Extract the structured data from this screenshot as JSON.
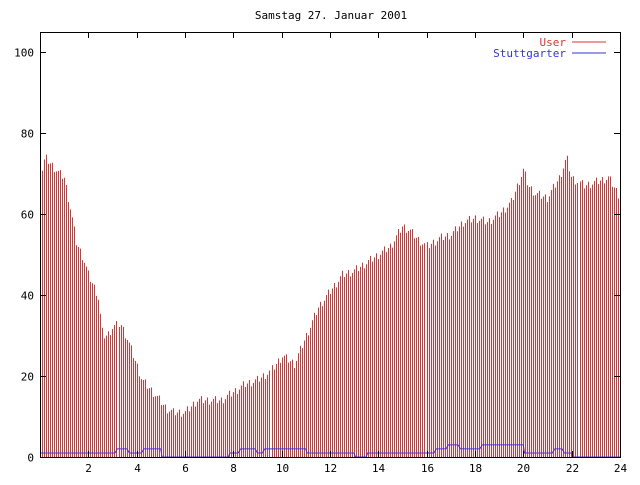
{
  "chart_data": {
    "type": "bar",
    "title": "Samstag 27. Januar 2001",
    "xlabel": "",
    "ylabel": "",
    "xlim": [
      0,
      24
    ],
    "ylim": [
      0,
      105
    ],
    "x_ticks": [
      "2",
      "4",
      "6",
      "8",
      "10",
      "12",
      "14",
      "16",
      "18",
      "20",
      "22",
      "24"
    ],
    "y_ticks": [
      "0",
      "20",
      "40",
      "60",
      "80",
      "100"
    ],
    "legend_position": "top-right",
    "bar_interval_hours": 0.0833,
    "series": [
      {
        "name": "User",
        "style": "impulses",
        "color": "#dd3333",
        "keypoints_x": [
          0,
          0.2,
          0.5,
          0.8,
          1.0,
          1.3,
          1.5,
          1.8,
          2.0,
          2.4,
          2.6,
          2.8,
          3.0,
          3.3,
          3.6,
          3.9,
          4.2,
          4.5,
          4.8,
          5.2,
          5.5,
          5.8,
          6.0,
          6.5,
          7.0,
          7.5,
          8.0,
          8.5,
          9.0,
          9.5,
          10.0,
          10.5,
          11.0,
          11.5,
          12.0,
          12.5,
          13.0,
          13.5,
          14.0,
          14.5,
          15.0,
          15.3,
          15.6,
          16.0,
          16.5,
          17.0,
          17.5,
          18.0,
          18.5,
          19.0,
          19.5,
          20.0,
          20.2,
          20.5,
          21.0,
          21.5,
          21.8,
          22.0,
          22.5,
          23.0,
          23.5,
          24.0
        ],
        "keypoints_y": [
          69,
          74,
          72,
          70,
          69,
          60,
          53,
          49,
          45,
          40,
          30,
          30,
          32,
          33,
          29,
          24,
          19,
          17,
          15,
          12,
          11,
          11,
          11,
          14,
          14,
          14,
          16,
          18,
          19,
          21,
          25,
          23,
          30,
          37,
          41,
          45,
          46,
          48,
          50,
          52,
          57,
          56,
          54,
          52,
          54,
          55,
          58,
          59,
          58,
          60,
          63,
          71,
          67,
          65,
          64,
          69,
          74,
          69,
          67,
          68,
          69,
          64
        ]
      },
      {
        "name": "Stuttgarter",
        "style": "lines",
        "color": "#3333dd",
        "keypoints_x": [
          0,
          3.1,
          3.2,
          3.6,
          3.7,
          4.2,
          4.3,
          5.0,
          5.05,
          7.8,
          7.85,
          8.2,
          8.3,
          8.9,
          9.0,
          9.2,
          9.3,
          11.0,
          11.05,
          13.0,
          13.05,
          13.5,
          13.55,
          16.3,
          16.4,
          16.8,
          16.9,
          17.3,
          17.4,
          17.8,
          17.9,
          18.2,
          18.3,
          20.0,
          20.05,
          21.2,
          21.3,
          21.6,
          21.7,
          22.0,
          22.05,
          24.0
        ],
        "keypoints_y": [
          1,
          1,
          2,
          2,
          1,
          1,
          2,
          2,
          0,
          0,
          1,
          1,
          2,
          2,
          1,
          1,
          2,
          2,
          1,
          1,
          0,
          0,
          1,
          1,
          2,
          2,
          3,
          3,
          2,
          2,
          2,
          2,
          3,
          3,
          1,
          1,
          2,
          2,
          1,
          1,
          0,
          0
        ]
      }
    ]
  }
}
